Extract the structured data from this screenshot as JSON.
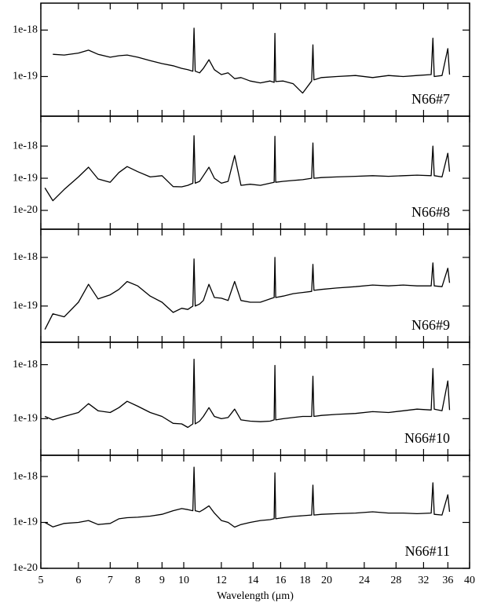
{
  "chart_data": [
    {
      "type": "line",
      "label": "N66#7",
      "xscale": "log",
      "yscale": "log",
      "xlim": [
        5,
        40
      ],
      "ylim": [
        1.4e-20,
        3.8e-18
      ],
      "yticks": [
        1e-18,
        1e-19
      ],
      "x": [
        5.1,
        5.3,
        5.6,
        6.0,
        6.3,
        6.6,
        7.0,
        7.3,
        7.6,
        8.0,
        8.5,
        9.0,
        9.5,
        9.9,
        10.2,
        10.45,
        10.51,
        10.57,
        10.8,
        11.0,
        11.3,
        11.6,
        12.0,
        12.4,
        12.8,
        13.2,
        13.8,
        14.5,
        15.2,
        15.5,
        15.56,
        15.62,
        16.2,
        17.0,
        17.8,
        18.6,
        18.71,
        18.8,
        19.5,
        21,
        23,
        25,
        27,
        29,
        31,
        33.2,
        33.48,
        33.7,
        35,
        36.0,
        36.3
      ],
      "series": [
        {
          "color": "#000000",
          "values": [
            null,
            3e-19,
            2.9e-19,
            3.2e-19,
            3.7e-19,
            3e-19,
            2.6e-19,
            2.8e-19,
            2.9e-19,
            2.6e-19,
            2.2e-19,
            1.9e-19,
            1.7e-19,
            1.5e-19,
            1.4e-19,
            1.3e-19,
            1.1e-18,
            1.3e-19,
            1.2e-19,
            1.5e-19,
            2.3e-19,
            1.4e-19,
            1.1e-19,
            1.2e-19,
            9e-20,
            9.5e-20,
            8e-20,
            7.3e-20,
            8e-20,
            7.5e-20,
            8.5e-19,
            7.8e-20,
            8e-20,
            7e-20,
            4.4e-20,
            8e-20,
            4.8e-19,
            8.5e-20,
            9.5e-20,
            1e-19,
            1.05e-19,
            9.5e-20,
            1.05e-19,
            1e-19,
            1.05e-19,
            1.1e-19,
            6.7e-19,
            1e-19,
            1.05e-19,
            4e-19,
            1.1e-19
          ]
        }
      ]
    },
    {
      "type": "line",
      "label": "N66#8",
      "xscale": "log",
      "yscale": "log",
      "xlim": [
        5,
        40
      ],
      "ylim": [
        2.6e-21,
        8.5e-18
      ],
      "yticks": [
        1e-18,
        1e-19,
        1e-20
      ],
      "x": [
        5.1,
        5.3,
        5.6,
        6.0,
        6.3,
        6.6,
        7.0,
        7.3,
        7.6,
        8.0,
        8.5,
        9.0,
        9.5,
        9.9,
        10.2,
        10.45,
        10.51,
        10.57,
        10.8,
        11.0,
        11.3,
        11.6,
        12.0,
        12.4,
        12.8,
        13.2,
        13.8,
        14.5,
        15.2,
        15.5,
        15.56,
        15.62,
        16.2,
        17.0,
        17.8,
        18.6,
        18.71,
        18.8,
        19.5,
        21,
        23,
        25,
        27,
        29,
        31,
        33.2,
        33.48,
        33.7,
        35,
        36.0,
        36.3
      ],
      "series": [
        {
          "color": "#000000",
          "values": [
            5e-20,
            2e-20,
            4.5e-20,
            1.1e-19,
            2.2e-19,
            9.5e-20,
            7.5e-20,
            1.5e-19,
            2.3e-19,
            1.6e-19,
            1.1e-19,
            1.2e-19,
            5.5e-20,
            5.4e-20,
            6e-20,
            7e-20,
            2.1e-18,
            7e-20,
            8e-20,
            1.2e-19,
            2.2e-19,
            1e-19,
            7e-20,
            8e-20,
            5.1e-19,
            6e-20,
            6.5e-20,
            6e-20,
            7e-20,
            7.5e-20,
            2e-18,
            7.5e-20,
            8e-20,
            8.5e-20,
            9e-20,
            1e-19,
            1.25e-18,
            1e-19,
            1.05e-19,
            1.1e-19,
            1.15e-19,
            1.2e-19,
            1.15e-19,
            1.2e-19,
            1.25e-19,
            1.2e-19,
            1e-18,
            1.2e-19,
            1.1e-19,
            6e-19,
            1.6e-19
          ]
        }
      ]
    },
    {
      "type": "line",
      "label": "N66#9",
      "xscale": "log",
      "yscale": "log",
      "xlim": [
        5,
        40
      ],
      "ylim": [
        1.8e-20,
        3.8e-18
      ],
      "yticks": [
        1e-18,
        1e-19
      ],
      "x": [
        5.1,
        5.3,
        5.6,
        6.0,
        6.3,
        6.6,
        7.0,
        7.3,
        7.6,
        8.0,
        8.5,
        9.0,
        9.5,
        9.9,
        10.2,
        10.45,
        10.51,
        10.57,
        10.8,
        11.0,
        11.3,
        11.6,
        12.0,
        12.4,
        12.8,
        13.2,
        13.8,
        14.5,
        15.2,
        15.5,
        15.56,
        15.62,
        16.2,
        17.0,
        17.8,
        18.6,
        18.71,
        18.8,
        19.5,
        21,
        23,
        25,
        27,
        29,
        31,
        33.2,
        33.48,
        33.7,
        35,
        36.0,
        36.3
      ],
      "series": [
        {
          "color": "#000000",
          "values": [
            3.3e-20,
            6.9e-20,
            6e-20,
            1.2e-19,
            2.8e-19,
            1.4e-19,
            1.7e-19,
            2.2e-19,
            3.2e-19,
            2.6e-19,
            1.6e-19,
            1.2e-19,
            7.4e-20,
            9e-20,
            8.5e-20,
            1e-19,
            9.3e-19,
            1e-19,
            1.1e-19,
            1.3e-19,
            2.8e-19,
            1.5e-19,
            1.45e-19,
            1.3e-19,
            3.2e-19,
            1.3e-19,
            1.2e-19,
            1.2e-19,
            1.4e-19,
            1.5e-19,
            1e-18,
            1.5e-19,
            1.6e-19,
            1.8e-19,
            1.9e-19,
            2e-19,
            7.2e-19,
            2.1e-19,
            2.2e-19,
            2.35e-19,
            2.5e-19,
            2.7e-19,
            2.6e-19,
            2.7e-19,
            2.6e-19,
            2.6e-19,
            7.7e-19,
            2.6e-19,
            2.5e-19,
            6e-19,
            3e-19
          ]
        }
      ]
    },
    {
      "type": "line",
      "label": "N66#10",
      "xscale": "log",
      "yscale": "log",
      "xlim": [
        5,
        40
      ],
      "ylim": [
        2.1e-20,
        2.6e-18
      ],
      "yticks": [
        1e-18,
        1e-19
      ],
      "x": [
        5.1,
        5.3,
        5.6,
        6.0,
        6.3,
        6.6,
        7.0,
        7.3,
        7.6,
        8.0,
        8.5,
        9.0,
        9.5,
        9.9,
        10.2,
        10.45,
        10.51,
        10.57,
        10.8,
        11.0,
        11.3,
        11.6,
        12.0,
        12.4,
        12.8,
        13.2,
        13.8,
        14.5,
        15.2,
        15.5,
        15.56,
        15.62,
        16.2,
        17.0,
        17.8,
        18.6,
        18.71,
        18.8,
        19.5,
        21,
        23,
        25,
        27,
        29,
        31,
        33.2,
        33.48,
        33.7,
        35,
        36.0,
        36.3
      ],
      "series": [
        {
          "color": "#000000",
          "values": [
            1.1e-19,
            9.5e-20,
            1.1e-19,
            1.3e-19,
            1.9e-19,
            1.4e-19,
            1.3e-19,
            1.6e-19,
            2.1e-19,
            1.7e-19,
            1.3e-19,
            1.1e-19,
            8.2e-20,
            8e-20,
            6.9e-20,
            8e-20,
            1.26e-18,
            8e-20,
            9e-20,
            1.1e-19,
            1.6e-19,
            1.1e-19,
            1e-19,
            1.05e-19,
            1.5e-19,
            9.5e-20,
            9e-20,
            8.8e-20,
            9e-20,
            9.5e-20,
            9.7e-19,
            9.5e-20,
            1e-19,
            1.05e-19,
            1.1e-19,
            1.1e-19,
            6.1e-19,
            1.1e-19,
            1.15e-19,
            1.2e-19,
            1.25e-19,
            1.35e-19,
            1.3e-19,
            1.4e-19,
            1.5e-19,
            1.45e-19,
            8.5e-19,
            1.5e-19,
            1.4e-19,
            5e-19,
            1.45e-19
          ]
        }
      ]
    },
    {
      "type": "line",
      "label": "N66#11",
      "xscale": "log",
      "yscale": "log",
      "xlim": [
        5,
        40
      ],
      "ylim": [
        1e-20,
        2.9e-18
      ],
      "yticks": [
        1e-18,
        1e-19,
        1e-20
      ],
      "xlabel": "Wavelength (μm)",
      "xticks": [
        5,
        6,
        7,
        8,
        9,
        10,
        12,
        14,
        16,
        18,
        20,
        24,
        28,
        32,
        36,
        40
      ],
      "x": [
        5.1,
        5.3,
        5.6,
        6.0,
        6.3,
        6.6,
        7.0,
        7.3,
        7.6,
        8.0,
        8.5,
        9.0,
        9.5,
        9.9,
        10.2,
        10.45,
        10.51,
        10.57,
        10.8,
        11.0,
        11.3,
        11.6,
        12.0,
        12.4,
        12.8,
        13.2,
        13.8,
        14.5,
        15.2,
        15.5,
        15.56,
        15.62,
        16.2,
        17.0,
        17.8,
        18.6,
        18.71,
        18.8,
        19.5,
        21,
        23,
        25,
        27,
        29,
        31,
        33.2,
        33.48,
        33.7,
        35,
        36.0,
        36.3
      ],
      "series": [
        {
          "color": "#000000",
          "values": [
            1e-19,
            8e-20,
            9.5e-20,
            1e-19,
            1.1e-19,
            9e-20,
            9.5e-20,
            1.2e-19,
            1.27e-19,
            1.3e-19,
            1.37e-19,
            1.5e-19,
            1.8e-19,
            2e-19,
            1.9e-19,
            1.8e-19,
            1.6e-18,
            1.8e-19,
            1.7e-19,
            1.9e-19,
            2.3e-19,
            1.6e-19,
            1.1e-19,
            1e-19,
            7.9e-20,
            9e-20,
            1e-19,
            1.1e-19,
            1.15e-19,
            1.2e-19,
            1.2e-18,
            1.2e-19,
            1.27e-19,
            1.35e-19,
            1.4e-19,
            1.45e-19,
            6.5e-19,
            1.45e-19,
            1.5e-19,
            1.55e-19,
            1.6e-19,
            1.7e-19,
            1.6e-19,
            1.6e-19,
            1.55e-19,
            1.6e-19,
            7.3e-19,
            1.5e-19,
            1.45e-19,
            4e-19,
            1.7e-19
          ]
        }
      ]
    }
  ]
}
